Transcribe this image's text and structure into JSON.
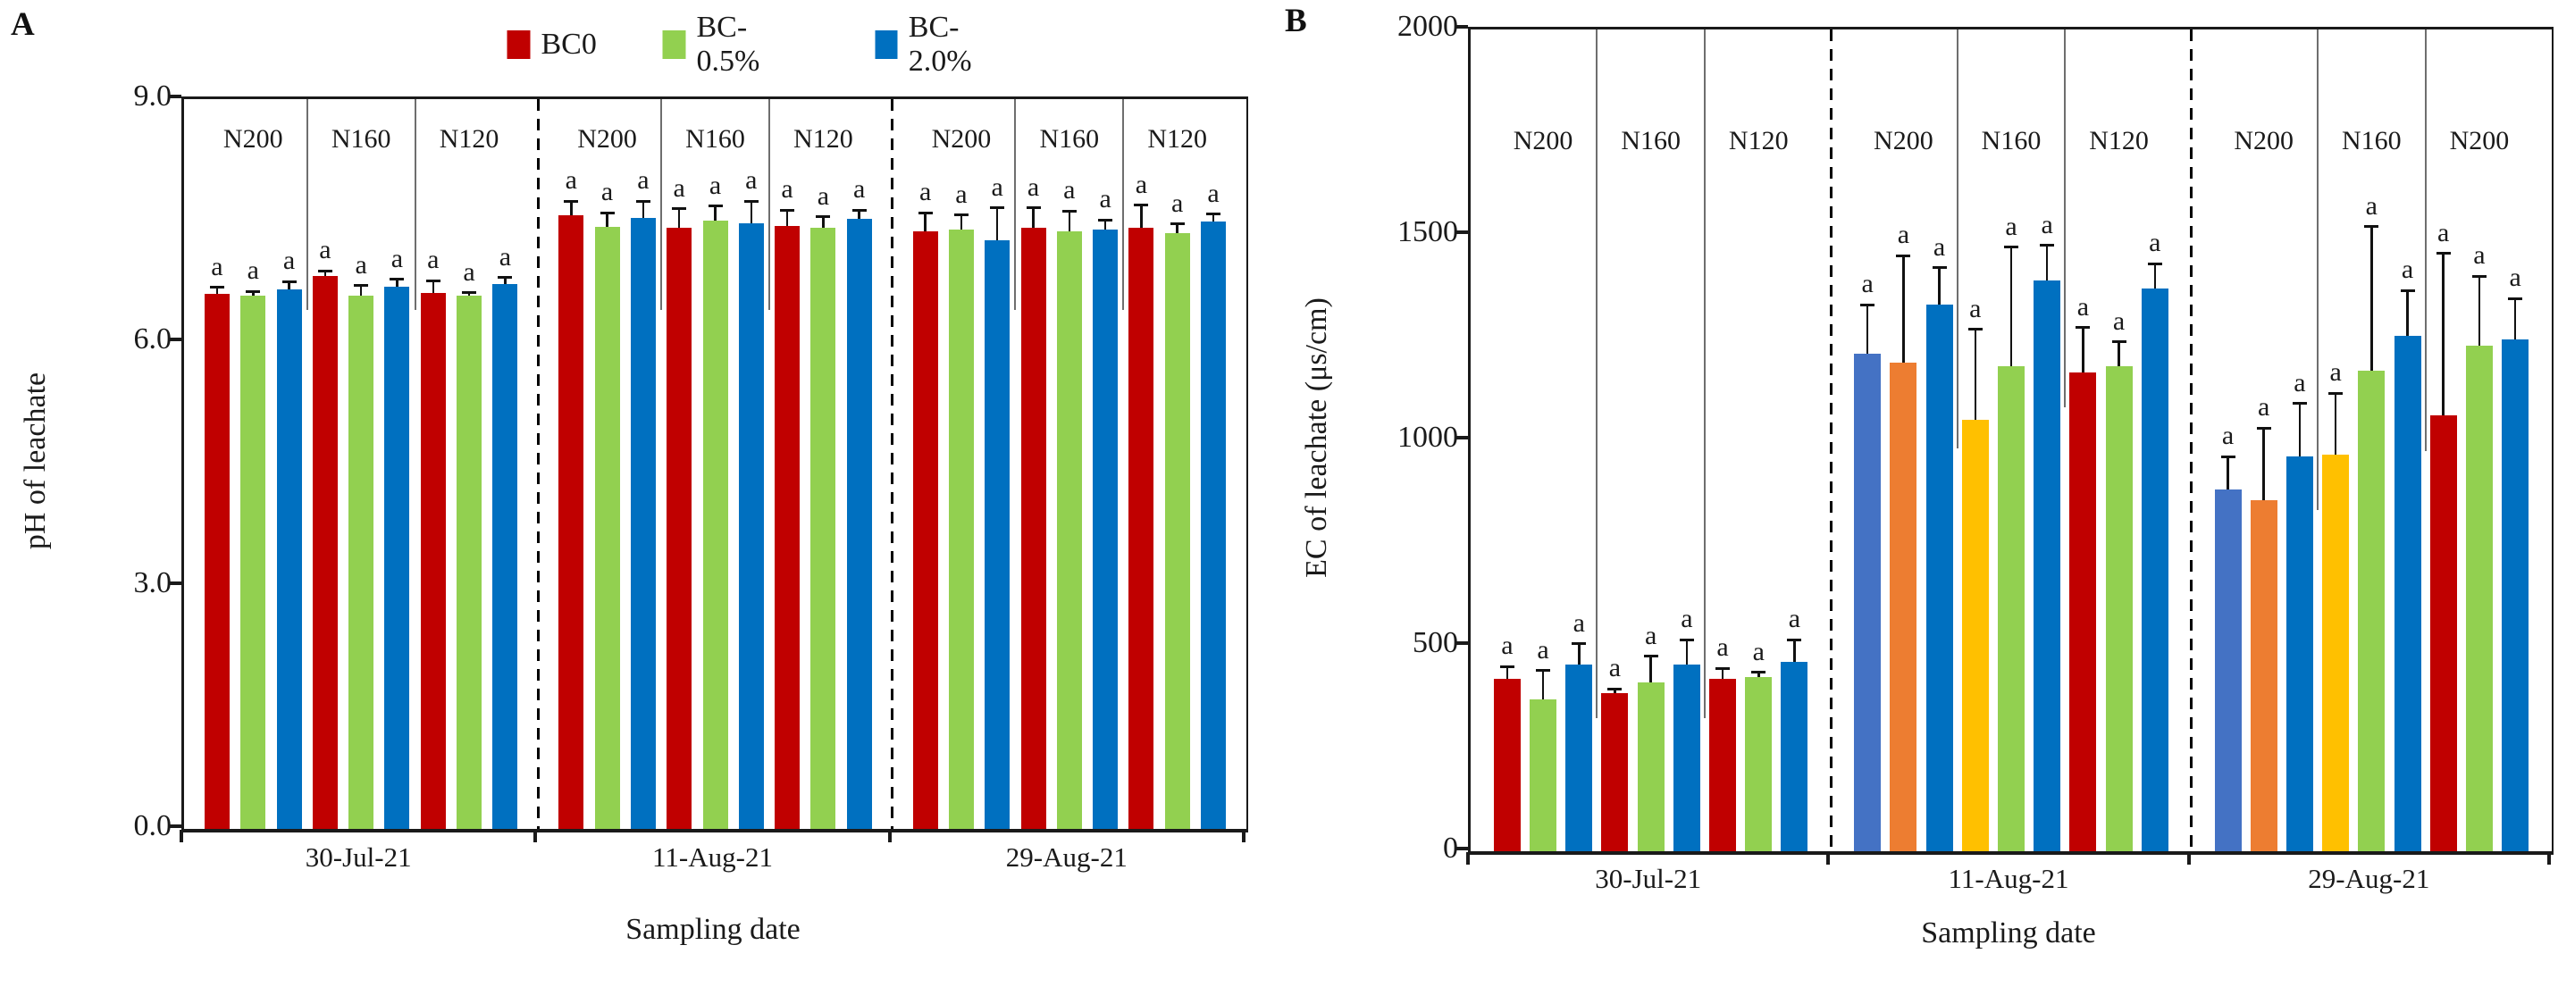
{
  "chart_data": [
    {
      "id": "A",
      "type": "bar",
      "panel_label": "A",
      "ylabel": "pH of leachate",
      "xlabel": "Sampling date",
      "ylim": [
        0,
        9
      ],
      "grid": false,
      "yticks": [
        {
          "value": 9,
          "label": "9.0"
        },
        {
          "value": 6,
          "label": "6.0"
        },
        {
          "value": 3,
          "label": "3.0"
        },
        {
          "value": 0,
          "label": "0.0"
        }
      ],
      "legend": {
        "position": "top-center",
        "entries": [
          {
            "label": "BC0",
            "color": "#C00000"
          },
          {
            "label": "BC-0.5%",
            "color": "#92D050"
          },
          {
            "label": "BC-2.0%",
            "color": "#0070C0"
          }
        ]
      },
      "groups": [
        {
          "date": "30-Jul-21",
          "separator_end_values": [
            6.4,
            6.4
          ],
          "subgroups": [
            {
              "label": "N200",
              "bars": [
                {
                  "series": "BC0",
                  "value": 6.6,
                  "err": 0.08,
                  "color": "#C00000",
                  "sig": "a"
                },
                {
                  "series": "BC-0.5%",
                  "value": 6.58,
                  "err": 0.05,
                  "color": "#92D050",
                  "sig": "a"
                },
                {
                  "series": "BC-2.0%",
                  "value": 6.65,
                  "err": 0.1,
                  "color": "#0070C0",
                  "sig": "a"
                }
              ]
            },
            {
              "label": "N160",
              "bars": [
                {
                  "series": "BC0",
                  "value": 6.82,
                  "err": 0.06,
                  "color": "#C00000",
                  "sig": "a"
                },
                {
                  "series": "BC-0.5%",
                  "value": 6.58,
                  "err": 0.12,
                  "color": "#92D050",
                  "sig": "a"
                },
                {
                  "series": "BC-2.0%",
                  "value": 6.69,
                  "err": 0.09,
                  "color": "#0070C0",
                  "sig": "a"
                }
              ]
            },
            {
              "label": "N120",
              "bars": [
                {
                  "series": "BC0",
                  "value": 6.61,
                  "err": 0.15,
                  "color": "#C00000",
                  "sig": "a"
                },
                {
                  "series": "BC-0.5%",
                  "value": 6.58,
                  "err": 0.03,
                  "color": "#92D050",
                  "sig": "a"
                },
                {
                  "series": "BC-2.0%",
                  "value": 6.72,
                  "err": 0.08,
                  "color": "#0070C0",
                  "sig": "a"
                }
              ]
            }
          ]
        },
        {
          "date": "11-Aug-21",
          "separator_end_values": [
            6.4,
            6.4
          ],
          "subgroups": [
            {
              "label": "N200",
              "bars": [
                {
                  "series": "BC0",
                  "value": 7.57,
                  "err": 0.17,
                  "color": "#C00000",
                  "sig": "a"
                },
                {
                  "series": "BC-0.5%",
                  "value": 7.43,
                  "err": 0.17,
                  "color": "#92D050",
                  "sig": "a"
                },
                {
                  "series": "BC-2.0%",
                  "value": 7.54,
                  "err": 0.2,
                  "color": "#0070C0",
                  "sig": "a"
                }
              ]
            },
            {
              "label": "N160",
              "bars": [
                {
                  "series": "BC0",
                  "value": 7.41,
                  "err": 0.24,
                  "color": "#C00000",
                  "sig": "a"
                },
                {
                  "series": "BC-0.5%",
                  "value": 7.5,
                  "err": 0.18,
                  "color": "#92D050",
                  "sig": "a"
                },
                {
                  "series": "BC-2.0%",
                  "value": 7.47,
                  "err": 0.27,
                  "color": "#0070C0",
                  "sig": "a"
                }
              ]
            },
            {
              "label": "N120",
              "bars": [
                {
                  "series": "BC0",
                  "value": 7.44,
                  "err": 0.19,
                  "color": "#C00000",
                  "sig": "a"
                },
                {
                  "series": "BC-0.5%",
                  "value": 7.41,
                  "err": 0.14,
                  "color": "#92D050",
                  "sig": "a"
                },
                {
                  "series": "BC-2.0%",
                  "value": 7.52,
                  "err": 0.11,
                  "color": "#0070C0",
                  "sig": "a"
                }
              ]
            }
          ]
        },
        {
          "date": "29-Aug-21",
          "separator_end_values": [
            6.4,
            6.4
          ],
          "subgroups": [
            {
              "label": "N200",
              "bars": [
                {
                  "series": "BC0",
                  "value": 7.37,
                  "err": 0.23,
                  "color": "#C00000",
                  "sig": "a"
                },
                {
                  "series": "BC-0.5%",
                  "value": 7.39,
                  "err": 0.18,
                  "color": "#92D050",
                  "sig": "a"
                },
                {
                  "series": "BC-2.0%",
                  "value": 7.26,
                  "err": 0.4,
                  "color": "#0070C0",
                  "sig": "a"
                }
              ]
            },
            {
              "label": "N160",
              "bars": [
                {
                  "series": "BC0",
                  "value": 7.41,
                  "err": 0.25,
                  "color": "#C00000",
                  "sig": "a"
                },
                {
                  "series": "BC-0.5%",
                  "value": 7.37,
                  "err": 0.25,
                  "color": "#92D050",
                  "sig": "a"
                },
                {
                  "series": "BC-2.0%",
                  "value": 7.39,
                  "err": 0.12,
                  "color": "#0070C0",
                  "sig": "a"
                }
              ]
            },
            {
              "label": "N120",
              "bars": [
                {
                  "series": "BC0",
                  "value": 7.41,
                  "err": 0.28,
                  "color": "#C00000",
                  "sig": "a"
                },
                {
                  "series": "BC-0.5%",
                  "value": 7.35,
                  "err": 0.11,
                  "color": "#92D050",
                  "sig": "a"
                },
                {
                  "series": "BC-2.0%",
                  "value": 7.49,
                  "err": 0.09,
                  "color": "#0070C0",
                  "sig": "a"
                }
              ]
            }
          ]
        }
      ]
    },
    {
      "id": "B",
      "type": "bar",
      "panel_label": "B",
      "ylabel": "EC of leachate (μs/cm)",
      "xlabel": "Sampling date",
      "ylim": [
        0,
        2000
      ],
      "grid": false,
      "yticks": [
        {
          "value": 2000,
          "label": "2000"
        },
        {
          "value": 1500,
          "label": "1500"
        },
        {
          "value": 1000,
          "label": "1000"
        },
        {
          "value": 500,
          "label": "500"
        },
        {
          "value": 0,
          "label": "0"
        }
      ],
      "legend": null,
      "groups": [
        {
          "date": "30-Jul-21",
          "separator_end_values": [
            325,
            325
          ],
          "subgroups": [
            {
              "label": "N200",
              "bars": [
                {
                  "series": "BC0",
                  "value": 420,
                  "err": 30,
                  "color": "#C00000",
                  "sig": "a"
                },
                {
                  "series": "BC-0.5%",
                  "value": 370,
                  "err": 70,
                  "color": "#92D050",
                  "sig": "a"
                },
                {
                  "series": "BC-2.0%",
                  "value": 455,
                  "err": 50,
                  "color": "#0070C0",
                  "sig": "a"
                }
              ]
            },
            {
              "label": "N160",
              "bars": [
                {
                  "series": "BC0",
                  "value": 385,
                  "err": 10,
                  "color": "#C00000",
                  "sig": "a"
                },
                {
                  "series": "BC-0.5%",
                  "value": 410,
                  "err": 65,
                  "color": "#92D050",
                  "sig": "a"
                },
                {
                  "series": "BC-2.0%",
                  "value": 455,
                  "err": 60,
                  "color": "#0070C0",
                  "sig": "a"
                }
              ]
            },
            {
              "label": "N120",
              "bars": [
                {
                  "series": "BC0",
                  "value": 420,
                  "err": 25,
                  "color": "#C00000",
                  "sig": "a"
                },
                {
                  "series": "BC-0.5%",
                  "value": 425,
                  "err": 10,
                  "color": "#92D050",
                  "sig": "a"
                },
                {
                  "series": "BC-2.0%",
                  "value": 460,
                  "err": 55,
                  "color": "#0070C0",
                  "sig": "a"
                }
              ]
            }
          ]
        },
        {
          "date": "11-Aug-21",
          "separator_end_values": [
            980,
            1080
          ],
          "subgroups": [
            {
              "label": "N200",
              "bars": [
                {
                  "series": "BC0",
                  "value": 1210,
                  "err": 120,
                  "color": "#4472C4",
                  "sig": "a"
                },
                {
                  "series": "BC-0.5%",
                  "value": 1190,
                  "err": 260,
                  "color": "#ED7D31",
                  "sig": "a"
                },
                {
                  "series": "BC-2.0%",
                  "value": 1330,
                  "err": 90,
                  "color": "#0070C0",
                  "sig": "a"
                }
              ]
            },
            {
              "label": "N160",
              "bars": [
                {
                  "series": "BC0",
                  "value": 1050,
                  "err": 220,
                  "color": "#FFC000",
                  "sig": "a"
                },
                {
                  "series": "BC-0.5%",
                  "value": 1180,
                  "err": 290,
                  "color": "#92D050",
                  "sig": "a"
                },
                {
                  "series": "BC-2.0%",
                  "value": 1390,
                  "err": 85,
                  "color": "#0070C0",
                  "sig": "a"
                }
              ]
            },
            {
              "label": "N120",
              "bars": [
                {
                  "series": "BC0",
                  "value": 1165,
                  "err": 110,
                  "color": "#C00000",
                  "sig": "a"
                },
                {
                  "series": "BC-0.5%",
                  "value": 1180,
                  "err": 60,
                  "color": "#92D050",
                  "sig": "a"
                },
                {
                  "series": "BC-2.0%",
                  "value": 1370,
                  "err": 60,
                  "color": "#0070C0",
                  "sig": "a"
                }
              ]
            }
          ]
        },
        {
          "date": "29-Aug-21",
          "separator_end_values": [
            830,
            975
          ],
          "subgroups": [
            {
              "label": "N200",
              "bars": [
                {
                  "series": "BC0",
                  "value": 880,
                  "err": 80,
                  "color": "#4472C4",
                  "sig": "a"
                },
                {
                  "series": "BC-0.5%",
                  "value": 855,
                  "err": 175,
                  "color": "#ED7D31",
                  "sig": "a"
                },
                {
                  "series": "BC-2.0%",
                  "value": 960,
                  "err": 130,
                  "color": "#0070C0",
                  "sig": "a"
                }
              ]
            },
            {
              "label": "N160",
              "bars": [
                {
                  "series": "BC0",
                  "value": 965,
                  "err": 150,
                  "color": "#FFC000",
                  "sig": "a"
                },
                {
                  "series": "BC-0.5%",
                  "value": 1170,
                  "err": 350,
                  "color": "#92D050",
                  "sig": "a"
                },
                {
                  "series": "BC-2.0%",
                  "value": 1255,
                  "err": 110,
                  "color": "#0070C0",
                  "sig": "a"
                }
              ]
            },
            {
              "label": "N200",
              "bars": [
                {
                  "series": "BC0",
                  "value": 1060,
                  "err": 395,
                  "color": "#C00000",
                  "sig": "a"
                },
                {
                  "series": "BC-0.5%",
                  "value": 1230,
                  "err": 170,
                  "color": "#92D050",
                  "sig": "a"
                },
                {
                  "series": "BC-2.0%",
                  "value": 1245,
                  "err": 100,
                  "color": "#0070C0",
                  "sig": "a"
                }
              ]
            }
          ]
        }
      ]
    }
  ]
}
